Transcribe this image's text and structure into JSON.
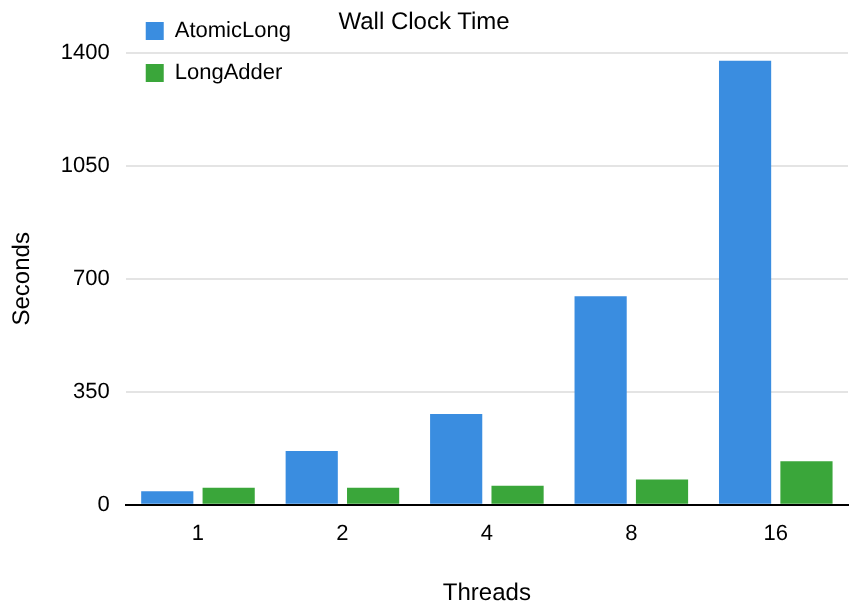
{
  "chart_data": {
    "type": "bar",
    "title": "Wall Clock Time",
    "xlabel": "Threads",
    "ylabel": "Seconds",
    "categories": [
      "1",
      "2",
      "4",
      "8",
      "16"
    ],
    "series": [
      {
        "name": "AtomicLong",
        "color": "#3a8de0",
        "values": [
          42,
          167,
          281,
          646,
          1375
        ]
      },
      {
        "name": "LongAdder",
        "color": "#3aa63a",
        "values": [
          53,
          53,
          59,
          78,
          135
        ]
      }
    ],
    "ylim": [
      0,
      1400
    ],
    "yticks": [
      0,
      350,
      700,
      1050,
      1400
    ],
    "grid": "y",
    "legend": "top left"
  }
}
